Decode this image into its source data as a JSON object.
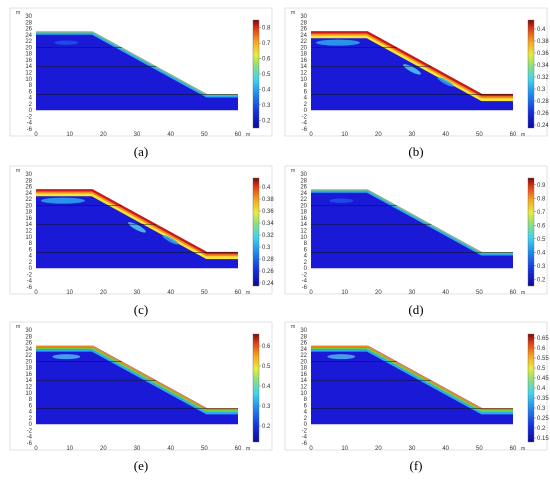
{
  "figure": {
    "panels": [
      {
        "label": "(a)",
        "y_ticks": [
          "30",
          "28",
          "26",
          "24",
          "22",
          "20",
          "18",
          "16",
          "14",
          "12",
          "10",
          "8",
          "6",
          "4",
          "2",
          "0",
          "-2",
          "-4",
          "-6"
        ],
        "x_ticks": [
          "0",
          "10",
          "20",
          "30",
          "40",
          "50",
          "60"
        ],
        "x_unit": "m",
        "y_unit": "m",
        "colorbar": {
          "ticks": [
            "0.8",
            "0.7",
            "0.6",
            "0.5",
            "0.4",
            "0.3",
            "0.2"
          ],
          "min": 0.15,
          "max": 0.85
        },
        "theme": "low"
      },
      {
        "label": "(b)",
        "y_ticks": [
          "30",
          "28",
          "26",
          "24",
          "22",
          "20",
          "18",
          "16",
          "14",
          "12",
          "10",
          "8",
          "6",
          "4",
          "2",
          "0",
          "-2",
          "-4",
          "-6"
        ],
        "x_ticks": [
          "0",
          "10",
          "20",
          "30",
          "40",
          "50",
          "60"
        ],
        "x_unit": "m",
        "y_unit": "m",
        "colorbar": {
          "ticks": [
            "0.4",
            "0.38",
            "0.36",
            "0.34",
            "0.32",
            "0.3",
            "0.28",
            "0.26",
            "0.24"
          ],
          "min": 0.235,
          "max": 0.415
        },
        "theme": "high"
      },
      {
        "label": "(c)",
        "y_ticks": [
          "30",
          "28",
          "26",
          "24",
          "22",
          "20",
          "18",
          "16",
          "14",
          "12",
          "10",
          "8",
          "6",
          "4",
          "2",
          "0",
          "-2",
          "-4",
          "-6"
        ],
        "x_ticks": [
          "0",
          "10",
          "20",
          "30",
          "40",
          "50",
          "60"
        ],
        "x_unit": "m",
        "y_unit": "m",
        "colorbar": {
          "ticks": [
            "0.4",
            "0.38",
            "0.36",
            "0.34",
            "0.32",
            "0.3",
            "0.28",
            "0.26",
            "0.24"
          ],
          "min": 0.235,
          "max": 0.415
        },
        "theme": "high"
      },
      {
        "label": "(d)",
        "y_ticks": [
          "30",
          "28",
          "26",
          "24",
          "22",
          "20",
          "18",
          "16",
          "14",
          "12",
          "10",
          "8",
          "6",
          "4",
          "2",
          "0",
          "-2",
          "-4",
          "-6"
        ],
        "x_ticks": [
          "0",
          "10",
          "20",
          "30",
          "40",
          "50",
          "60"
        ],
        "x_unit": "m",
        "y_unit": "m",
        "colorbar": {
          "ticks": [
            "0.9",
            "0.8",
            "0.7",
            "0.6",
            "0.5",
            "0.4",
            "0.3",
            "0.2"
          ],
          "min": 0.15,
          "max": 0.95
        },
        "theme": "low"
      },
      {
        "label": "(e)",
        "y_ticks": [
          "30",
          "28",
          "26",
          "24",
          "22",
          "20",
          "18",
          "16",
          "14",
          "12",
          "10",
          "8",
          "6",
          "4",
          "2",
          "0",
          "-2",
          "-4",
          "-6"
        ],
        "x_ticks": [
          "0",
          "10",
          "20",
          "30",
          "40",
          "50",
          "60"
        ],
        "x_unit": "m",
        "y_unit": "m",
        "colorbar": {
          "ticks": [
            "0.6",
            "0.5",
            "0.4",
            "0.3",
            "0.2"
          ],
          "min": 0.12,
          "max": 0.66
        },
        "theme": "mid"
      },
      {
        "label": "(f)",
        "y_ticks": [
          "30",
          "28",
          "26",
          "24",
          "22",
          "20",
          "18",
          "16",
          "14",
          "12",
          "10",
          "8",
          "6",
          "4",
          "2",
          "0",
          "-2",
          "-4",
          "-6"
        ],
        "x_ticks": [
          "0",
          "10",
          "20",
          "30",
          "40",
          "50",
          "60"
        ],
        "x_unit": "m",
        "y_unit": "m",
        "colorbar": {
          "ticks": [
            "0.65",
            "0.6",
            "0.55",
            "0.5",
            "0.45",
            "0.4",
            "0.35",
            "0.3",
            "0.25",
            "0.2",
            "0.15"
          ],
          "min": 0.13,
          "max": 0.67
        },
        "theme": "mid"
      }
    ],
    "colors": {
      "deep_blue": "#1a1ad6",
      "light_blue": "#2fa8f0",
      "cyan": "#58d6f5",
      "green": "#6fcf4a",
      "yellow": "#f5e43a",
      "orange": "#f28a1e",
      "red": "#cc1a1a"
    }
  }
}
